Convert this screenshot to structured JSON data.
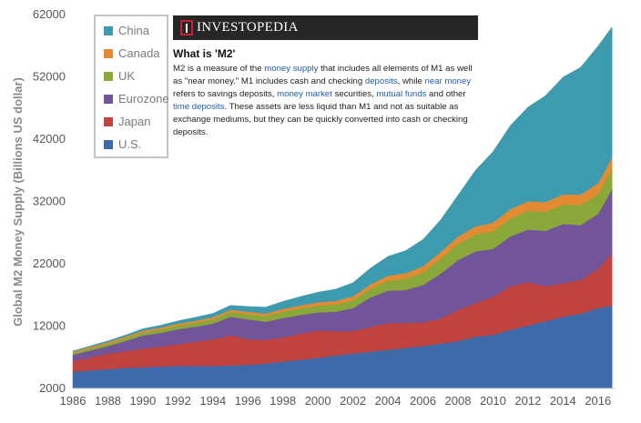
{
  "chart_data": {
    "type": "area",
    "stacked": true,
    "ylabel": "Global M2 Money Supply (Billions US dollar)",
    "xlabel": "",
    "xlim": [
      1986,
      2017
    ],
    "ylim": [
      2000,
      62000
    ],
    "yticks": [
      "2000",
      "12000",
      "22000",
      "32000",
      "42000",
      "52000",
      "62000"
    ],
    "xticks": [
      "1986",
      "1988",
      "1990",
      "1992",
      "1994",
      "1996",
      "1998",
      "2000",
      "2002",
      "2004",
      "2006",
      "2008",
      "2010",
      "2012",
      "2014",
      "2016"
    ],
    "x": [
      1986,
      1987,
      1988,
      1989,
      1990,
      1991,
      1992,
      1993,
      1994,
      1995,
      1996,
      1997,
      1998,
      1999,
      2000,
      2001,
      2002,
      2003,
      2004,
      2005,
      2006,
      2007,
      2008,
      2009,
      2010,
      2011,
      2012,
      2013,
      2014,
      2015,
      2016,
      2016.8
    ],
    "series": [
      {
        "name": "U.S.",
        "color": "#3f6aa9",
        "values": [
          2700,
          2900,
          3100,
          3300,
          3400,
          3500,
          3600,
          3600,
          3600,
          3700,
          3800,
          4000,
          4300,
          4600,
          4900,
          5300,
          5600,
          5900,
          6200,
          6500,
          6800,
          7200,
          7600,
          8300,
          8600,
          9400,
          10100,
          10800,
          11500,
          12000,
          12900,
          13300
        ]
      },
      {
        "name": "Japan",
        "color": "#c0433f",
        "values": [
          1700,
          2100,
          2500,
          2700,
          3000,
          3200,
          3500,
          3900,
          4300,
          4800,
          4100,
          3800,
          3900,
          4200,
          4400,
          3900,
          3600,
          4000,
          4300,
          4000,
          3800,
          4000,
          5000,
          5400,
          6100,
          7000,
          7000,
          5600,
          5400,
          5400,
          6300,
          8400
        ]
      },
      {
        "name": "Eurozone",
        "color": "#72549a",
        "values": [
          1000,
          1100,
          1200,
          1600,
          2100,
          2200,
          2400,
          2400,
          2500,
          3000,
          3200,
          2900,
          3100,
          3000,
          2900,
          3100,
          3700,
          4700,
          5200,
          5300,
          6000,
          7200,
          8000,
          8300,
          7700,
          8000,
          8400,
          8900,
          9500,
          8800,
          8800,
          10300
        ]
      },
      {
        "name": "UK",
        "color": "#8aa83a",
        "values": [
          300,
          350,
          400,
          450,
          500,
          550,
          580,
          620,
          680,
          750,
          800,
          900,
          1000,
          1050,
          1100,
          1150,
          1250,
          1400,
          1600,
          1800,
          2000,
          2400,
          2600,
          2700,
          2800,
          2900,
          3000,
          3000,
          3100,
          3200,
          3200,
          3300
        ]
      },
      {
        "name": "Canada",
        "color": "#e28b32",
        "values": [
          200,
          220,
          240,
          260,
          280,
          300,
          320,
          340,
          360,
          380,
          400,
          430,
          460,
          500,
          540,
          580,
          620,
          700,
          800,
          900,
          1000,
          1100,
          1200,
          1300,
          1400,
          1500,
          1550,
          1600,
          1650,
          1700,
          1750,
          1800
        ]
      },
      {
        "name": "China",
        "color": "#3d9bb0",
        "values": [
          100,
          150,
          200,
          250,
          300,
          380,
          450,
          550,
          600,
          700,
          850,
          1000,
          1200,
          1400,
          1600,
          1900,
          2200,
          2600,
          3100,
          3600,
          4300,
          5100,
          6600,
          9000,
          11400,
          13400,
          15100,
          17100,
          18800,
          20400,
          22000,
          20900
        ]
      }
    ]
  },
  "legend": {
    "items": [
      {
        "label": "China",
        "color": "#3d9bb0"
      },
      {
        "label": "Canada",
        "color": "#e28b32"
      },
      {
        "label": "UK",
        "color": "#8aa83a"
      },
      {
        "label": "Eurozone",
        "color": "#72549a"
      },
      {
        "label": "Japan",
        "color": "#c0433f"
      },
      {
        "label": "U.S.",
        "color": "#3f6aa9"
      }
    ]
  },
  "info": {
    "brand": "INVESTOPEDIA",
    "title": "What is 'M2'",
    "segments": [
      {
        "text": "M2 is a measure of the ",
        "link": false
      },
      {
        "text": "money supply",
        "link": true
      },
      {
        "text": " that includes all elements of M1 as well as \"near money.\" M1 includes cash and checking ",
        "link": false
      },
      {
        "text": "deposits",
        "link": true
      },
      {
        "text": ", while ",
        "link": false
      },
      {
        "text": "near money",
        "link": true
      },
      {
        "text": " refers to savings deposits, ",
        "link": false
      },
      {
        "text": "money market",
        "link": true
      },
      {
        "text": " securities, ",
        "link": false
      },
      {
        "text": "mutual funds",
        "link": true
      },
      {
        "text": " and other ",
        "link": false
      },
      {
        "text": "time deposits",
        "link": true
      },
      {
        "text": ". These assets are less liquid than M1 and not as suitable as exchange mediums, but they can be quickly converted into cash or checking deposits.",
        "link": false
      }
    ]
  }
}
